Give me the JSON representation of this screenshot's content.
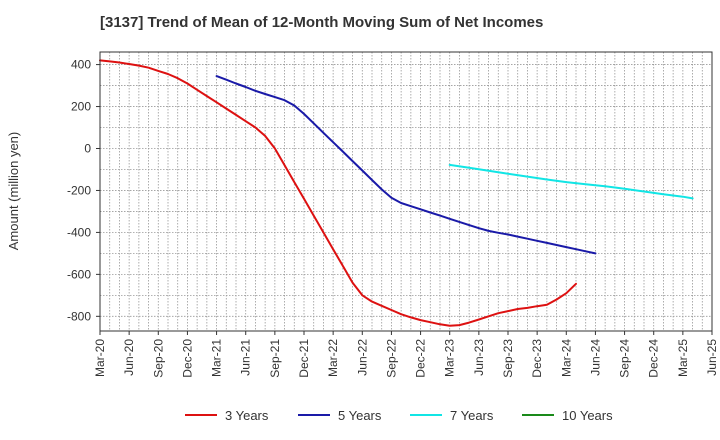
{
  "title": "[3137]  Trend of Mean of 12-Month Moving Sum of Net Incomes",
  "chart_data": {
    "type": "line",
    "title": "[3137]  Trend of Mean of 12-Month Moving Sum of Net Incomes",
    "xlabel": "",
    "ylabel": "Amount (million yen)",
    "ylim": [
      -870,
      460
    ],
    "yticks": [
      400,
      200,
      0,
      -200,
      -400,
      -600,
      -800
    ],
    "ytick_labels": [
      "400",
      "200",
      "0",
      "-200",
      "-400",
      "-600",
      "-800"
    ],
    "xticks": [
      "Mar-20",
      "Jun-20",
      "Sep-20",
      "Dec-20",
      "Mar-21",
      "Jun-21",
      "Sep-21",
      "Dec-21",
      "Mar-22",
      "Jun-22",
      "Sep-22",
      "Dec-22",
      "Mar-23",
      "Jun-23",
      "Sep-23",
      "Dec-23",
      "Mar-24",
      "Jun-24",
      "Sep-24",
      "Dec-24",
      "Mar-25",
      "Jun-25"
    ],
    "grid": true,
    "legend_position": "bottom",
    "series": [
      {
        "name": "3 Years",
        "color": "#dd1111",
        "points": [
          [
            0,
            420
          ],
          [
            1,
            415
          ],
          [
            2,
            410
          ],
          [
            3,
            403
          ],
          [
            4,
            395
          ],
          [
            5,
            385
          ],
          [
            6,
            370
          ],
          [
            7,
            355
          ],
          [
            8,
            335
          ],
          [
            9,
            310
          ],
          [
            10,
            280
          ],
          [
            11,
            250
          ],
          [
            12,
            220
          ],
          [
            13,
            190
          ],
          [
            14,
            160
          ],
          [
            15,
            130
          ],
          [
            16,
            100
          ],
          [
            17,
            60
          ],
          [
            18,
            0
          ],
          [
            19,
            -80
          ],
          [
            20,
            -160
          ],
          [
            21,
            -240
          ],
          [
            22,
            -320
          ],
          [
            23,
            -400
          ],
          [
            24,
            -480
          ],
          [
            25,
            -560
          ],
          [
            26,
            -640
          ],
          [
            27,
            -700
          ],
          [
            28,
            -730
          ],
          [
            29,
            -750
          ],
          [
            30,
            -770
          ],
          [
            31,
            -790
          ],
          [
            32,
            -805
          ],
          [
            33,
            -818
          ],
          [
            34,
            -828
          ],
          [
            35,
            -838
          ],
          [
            36,
            -845
          ],
          [
            37,
            -842
          ],
          [
            38,
            -830
          ],
          [
            39,
            -815
          ],
          [
            40,
            -800
          ],
          [
            41,
            -785
          ],
          [
            42,
            -775
          ],
          [
            43,
            -765
          ],
          [
            44,
            -760
          ],
          [
            45,
            -752
          ],
          [
            46,
            -745
          ],
          [
            47,
            -720
          ],
          [
            48,
            -690
          ],
          [
            49,
            -645
          ]
        ]
      },
      {
        "name": "5 Years",
        "color": "#1a1aa8",
        "points": [
          [
            12,
            345
          ],
          [
            13,
            328
          ],
          [
            14,
            310
          ],
          [
            15,
            293
          ],
          [
            16,
            275
          ],
          [
            17,
            260
          ],
          [
            18,
            245
          ],
          [
            19,
            230
          ],
          [
            20,
            205
          ],
          [
            21,
            165
          ],
          [
            22,
            120
          ],
          [
            23,
            75
          ],
          [
            24,
            30
          ],
          [
            25,
            -15
          ],
          [
            26,
            -60
          ],
          [
            27,
            -105
          ],
          [
            28,
            -150
          ],
          [
            29,
            -195
          ],
          [
            30,
            -235
          ],
          [
            31,
            -260
          ],
          [
            32,
            -275
          ],
          [
            33,
            -290
          ],
          [
            34,
            -305
          ],
          [
            35,
            -320
          ],
          [
            36,
            -335
          ],
          [
            37,
            -350
          ],
          [
            38,
            -365
          ],
          [
            39,
            -380
          ],
          [
            40,
            -393
          ],
          [
            41,
            -402
          ],
          [
            42,
            -410
          ],
          [
            43,
            -420
          ],
          [
            44,
            -430
          ],
          [
            45,
            -440
          ],
          [
            46,
            -450
          ],
          [
            47,
            -460
          ],
          [
            48,
            -470
          ],
          [
            49,
            -480
          ],
          [
            50,
            -490
          ],
          [
            51,
            -500
          ]
        ]
      },
      {
        "name": "7 Years",
        "color": "#11e5e5",
        "points": [
          [
            36,
            -78
          ],
          [
            38,
            -92
          ],
          [
            40,
            -106
          ],
          [
            42,
            -120
          ],
          [
            44,
            -134
          ],
          [
            46,
            -148
          ],
          [
            48,
            -160
          ],
          [
            50,
            -170
          ],
          [
            52,
            -180
          ],
          [
            54,
            -192
          ],
          [
            56,
            -205
          ],
          [
            58,
            -218
          ],
          [
            60,
            -230
          ],
          [
            61,
            -238
          ]
        ]
      },
      {
        "name": "10 Years",
        "color": "#1a8a1a",
        "points": []
      }
    ]
  }
}
